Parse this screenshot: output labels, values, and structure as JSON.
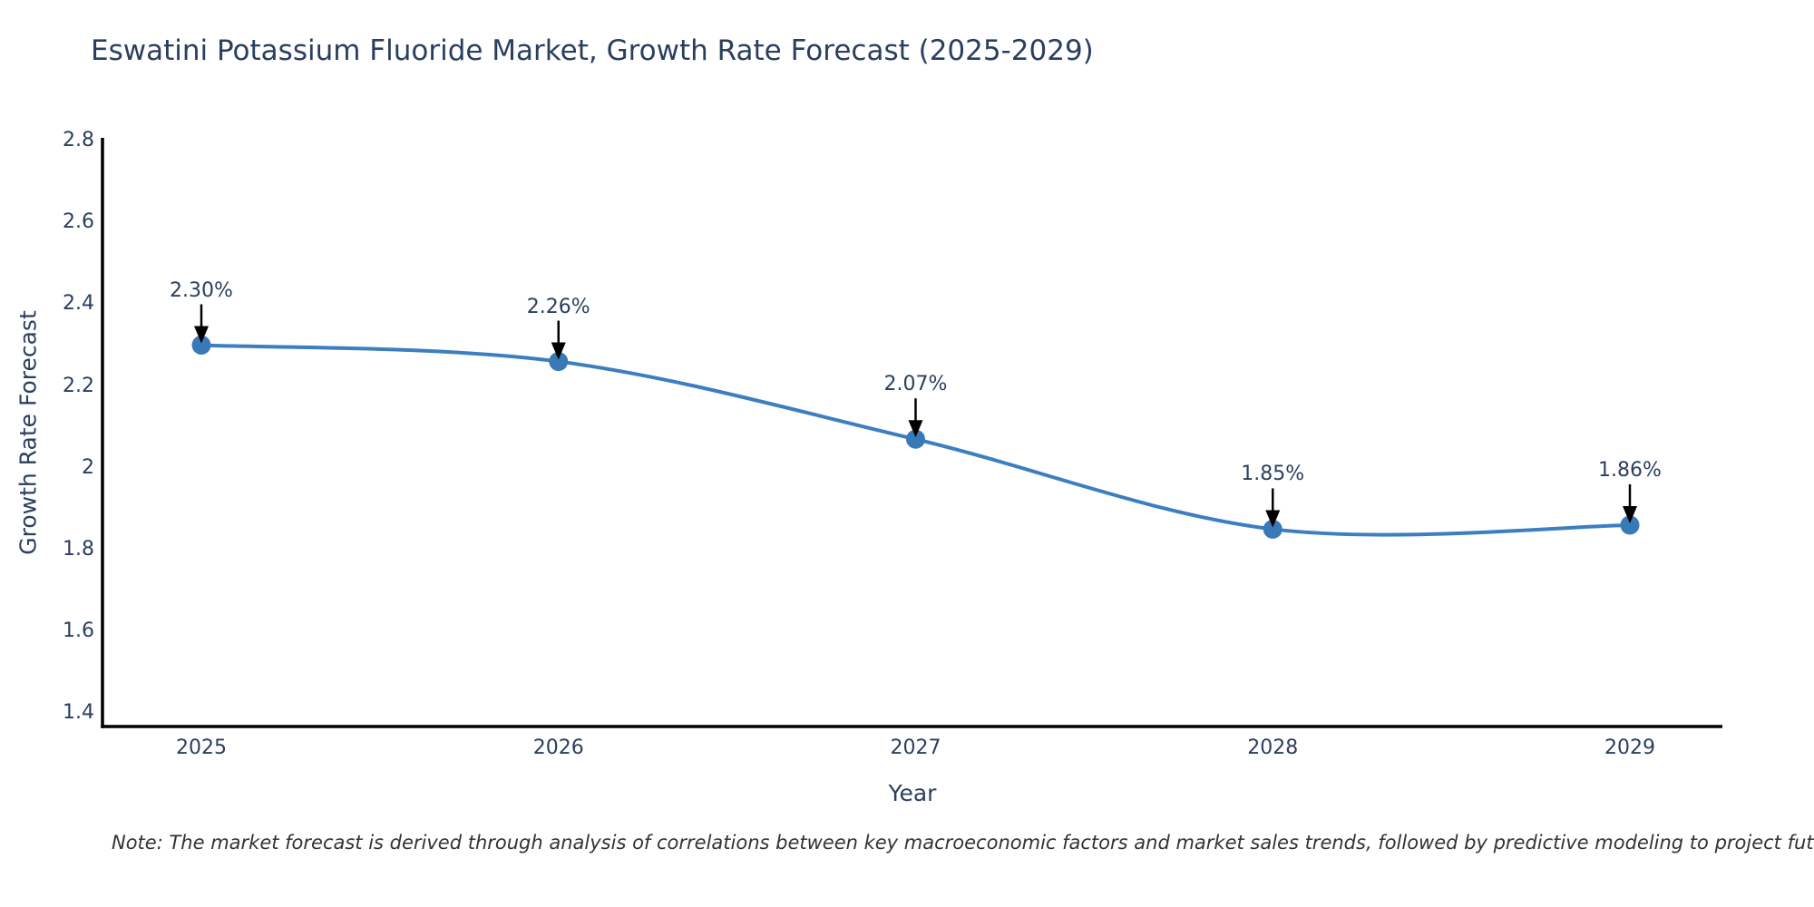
{
  "title": "Eswatini Potassium Fluoride Market, Growth Rate Forecast (2025-2029)",
  "note": "Note: The market forecast is derived through analysis of correlations between key macroeconomic factors and market sales trends, followed by predictive modeling to project future sales",
  "chart_data": {
    "type": "line",
    "line_shape": "spline",
    "title": "Eswatini Potassium Fluoride Market, Growth Rate Forecast (2025-2029)",
    "xlabel": "Year",
    "ylabel": "Growth Rate Forecast",
    "x": [
      2025,
      2026,
      2027,
      2028,
      2029
    ],
    "values": [
      2.3,
      2.26,
      2.07,
      1.85,
      1.86
    ],
    "point_labels": [
      "2.30%",
      "2.26%",
      "2.07%",
      "1.85%",
      "1.86%"
    ],
    "xtick_labels": [
      "2025",
      "2026",
      "2027",
      "2028",
      "2029"
    ],
    "ytick_labels": [
      "2.8",
      "2.6",
      "2.4",
      "2.2",
      "2",
      "1.8",
      "1.6",
      "1.4"
    ],
    "ylim": [
      1.37,
      2.81
    ],
    "xlim": [
      2024.72,
      2029.26
    ],
    "grid": false,
    "legend": "none",
    "annotation_style": "down-arrow-to-point",
    "colors": {
      "line": "#3c7ebf",
      "marker": "#3a79b8",
      "axis_line": "#000000",
      "title_text": "#2a3f5f",
      "tick_text": "#2a3f5f",
      "annotation_text": "#2a3f5f",
      "annotation_arrow": "#000000",
      "note_text": "#333333",
      "background": "#ffffff"
    }
  }
}
